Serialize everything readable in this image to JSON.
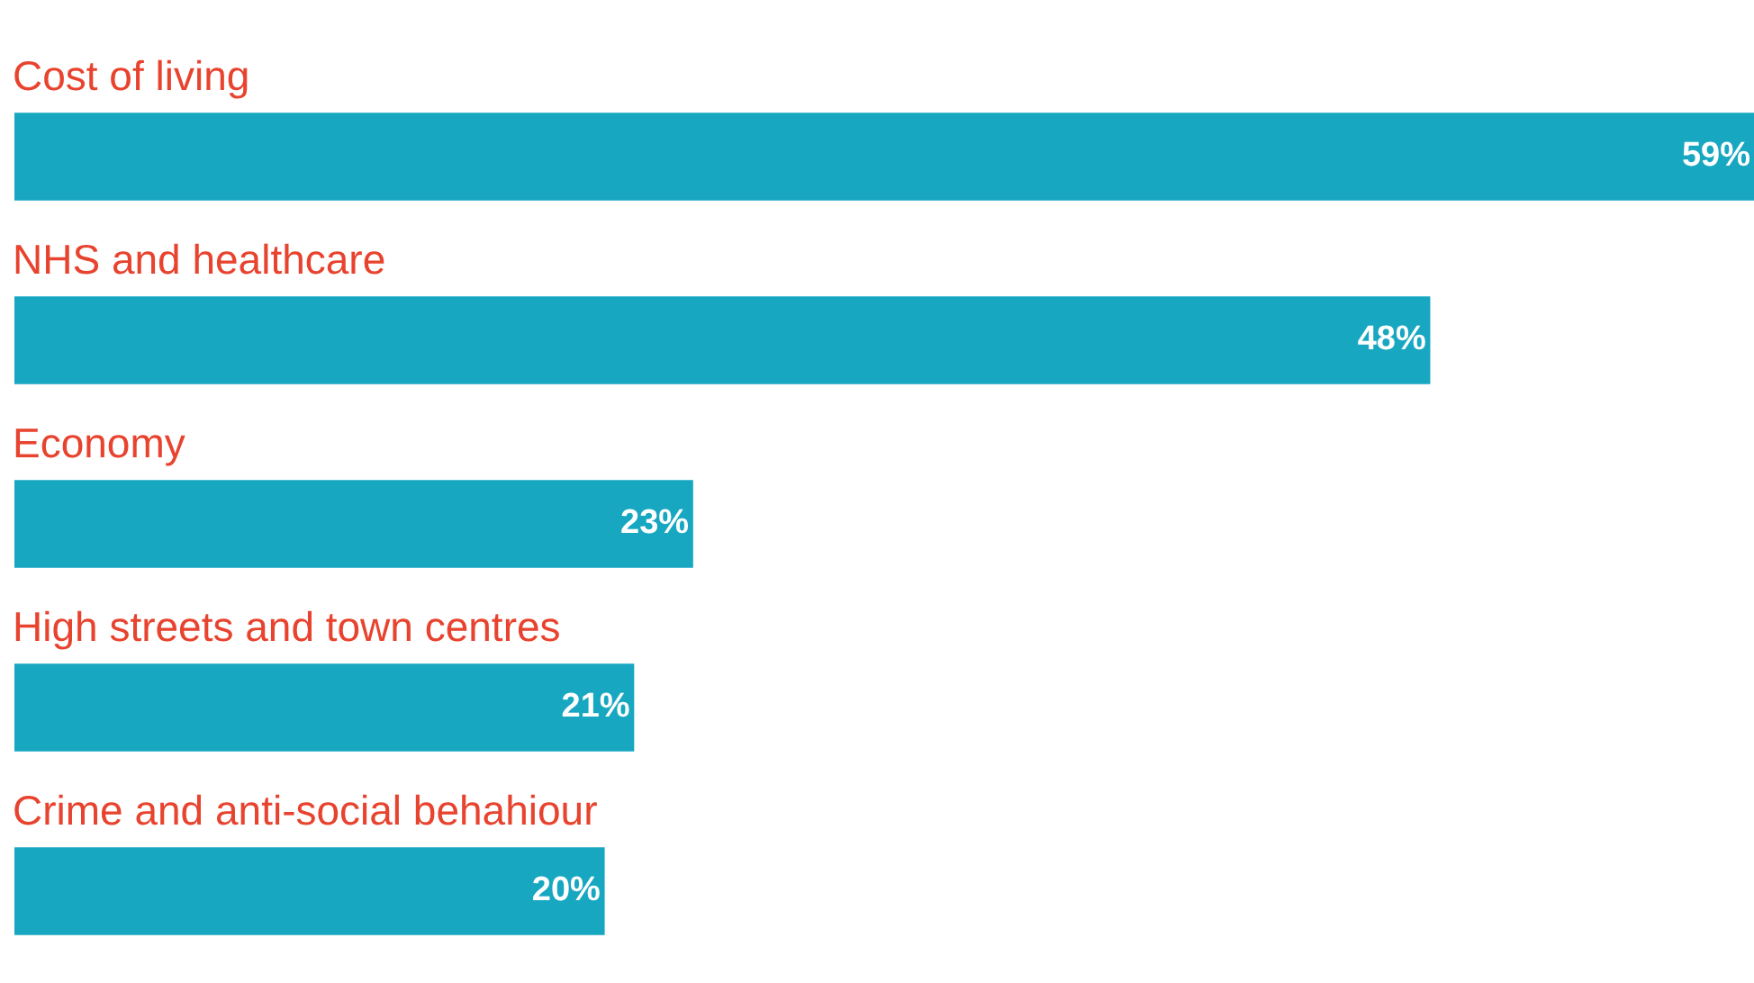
{
  "chart_data": {
    "type": "bar",
    "orientation": "horizontal",
    "categories": [
      "Cost of living",
      "NHS and healthcare",
      "Economy",
      "High streets and town centres",
      "Crime and anti-social behahiour"
    ],
    "values": [
      59,
      48,
      23,
      21,
      20
    ],
    "color": "#17a7c1",
    "value_labels": [
      "59%",
      "48%",
      "23%",
      "21%",
      "20%"
    ]
  }
}
